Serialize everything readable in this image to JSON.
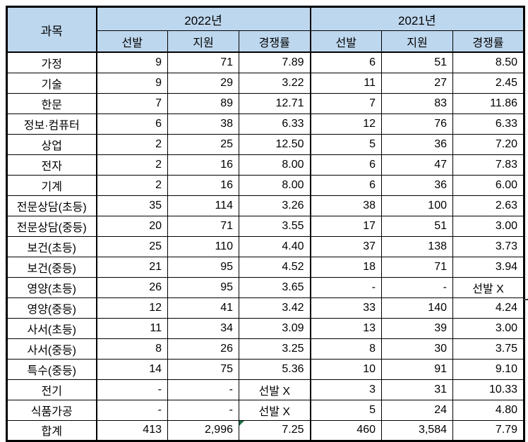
{
  "table": {
    "title_semantic": "subject-competition-rate-comparison-table",
    "header": {
      "subject_label": "과목",
      "year_groups": [
        {
          "label": "2022년",
          "columns": [
            "선발",
            "지원",
            "경쟁률"
          ]
        },
        {
          "label": "2021년",
          "columns": [
            "선발",
            "지원",
            "경쟁률"
          ]
        }
      ]
    },
    "rows": [
      {
        "subject": "가정",
        "y2022": [
          "9",
          "71",
          "7.89"
        ],
        "y2021": [
          "6",
          "51",
          "8.50"
        ]
      },
      {
        "subject": "기술",
        "y2022": [
          "9",
          "29",
          "3.22"
        ],
        "y2021": [
          "11",
          "27",
          "2.45"
        ]
      },
      {
        "subject": "한문",
        "y2022": [
          "7",
          "89",
          "12.71"
        ],
        "y2021": [
          "7",
          "83",
          "11.86"
        ]
      },
      {
        "subject": "정보·컴퓨터",
        "y2022": [
          "6",
          "38",
          "6.33"
        ],
        "y2021": [
          "12",
          "76",
          "6.33"
        ]
      },
      {
        "subject": "상업",
        "y2022": [
          "2",
          "25",
          "12.50"
        ],
        "y2021": [
          "5",
          "36",
          "7.20"
        ]
      },
      {
        "subject": "전자",
        "y2022": [
          "2",
          "16",
          "8.00"
        ],
        "y2021": [
          "6",
          "47",
          "7.83"
        ]
      },
      {
        "subject": "기계",
        "y2022": [
          "2",
          "16",
          "8.00"
        ],
        "y2021": [
          "6",
          "36",
          "6.00"
        ]
      },
      {
        "subject": "전문상담(초등)",
        "y2022": [
          "35",
          "114",
          "3.26"
        ],
        "y2021": [
          "38",
          "100",
          "2.63"
        ]
      },
      {
        "subject": "전문상담(중등)",
        "y2022": [
          "20",
          "71",
          "3.55"
        ],
        "y2021": [
          "17",
          "51",
          "3.00"
        ]
      },
      {
        "subject": "보건(초등)",
        "y2022": [
          "25",
          "110",
          "4.40"
        ],
        "y2021": [
          "37",
          "138",
          "3.73"
        ]
      },
      {
        "subject": "보건(중등)",
        "y2022": [
          "21",
          "95",
          "4.52"
        ],
        "y2021": [
          "18",
          "71",
          "3.94"
        ]
      },
      {
        "subject": "영양(초등)",
        "y2022": [
          "26",
          "95",
          "3.65"
        ],
        "y2021": [
          "-",
          "-",
          "선발 X"
        ]
      },
      {
        "subject": "영양(중등)",
        "y2022": [
          "12",
          "41",
          "3.42"
        ],
        "y2021": [
          "33",
          "140",
          "4.24"
        ]
      },
      {
        "subject": "사서(초등)",
        "y2022": [
          "11",
          "34",
          "3.09"
        ],
        "y2021": [
          "13",
          "39",
          "3.00"
        ]
      },
      {
        "subject": "사서(중등)",
        "y2022": [
          "8",
          "26",
          "3.25"
        ],
        "y2021": [
          "8",
          "30",
          "3.75"
        ]
      },
      {
        "subject": "특수(중등)",
        "y2022": [
          "14",
          "75",
          "5.36"
        ],
        "y2021": [
          "10",
          "91",
          "9.10"
        ]
      },
      {
        "subject": "전기",
        "y2022": [
          "-",
          "-",
          "선발 X"
        ],
        "y2021": [
          "3",
          "31",
          "10.33"
        ]
      },
      {
        "subject": "식품가공",
        "y2022": [
          "-",
          "-",
          "선발 X"
        ],
        "y2021": [
          "5",
          "24",
          "4.80"
        ]
      },
      {
        "subject": "합계",
        "y2022": [
          "413",
          "2,996",
          "7.25"
        ],
        "y2021": [
          "460",
          "3,584",
          "7.79"
        ]
      }
    ],
    "error_marker": {
      "row_index": 18,
      "cell_index": 3
    },
    "colors": {
      "header_bg": "#BDD7EE",
      "border": "#000000",
      "error_marker_green": "#1F7244"
    }
  }
}
